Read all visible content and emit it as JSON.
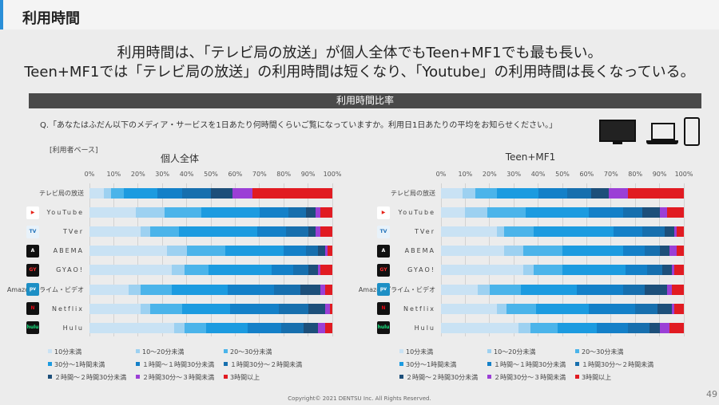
{
  "page": {
    "title": "利用時間",
    "headline_1": "利用時間は、「テレビ局の放送」が個人全体でもTeen+MF1でも最も長い。",
    "headline_2": "Teen+MF1では「テレビ局の放送」の利用時間は短くなり、「Youtube」の利用時間は長くなっている。",
    "section_header": "利用時間比率",
    "question": "Q.「あなたはふだん以下のメディア・サービスを1日あたり何時間くらいご覧になっていますか。利用日1日あたりの平均をお知らせください。」",
    "base_label": "[利用者ベース]",
    "copyright": "Copyright© 2021 DENTSU Inc. All Rights Reserved.",
    "page_number": "49"
  },
  "icons": [
    "tv-icon",
    "laptop-icon",
    "smartphone-icon"
  ],
  "chart_data": [
    {
      "type": "bar",
      "orientation": "horizontal",
      "stacked": true,
      "percent": true,
      "title": "個人全体",
      "xlim": [
        0,
        100
      ],
      "ticks": [
        "0%",
        "10%",
        "20%",
        "30%",
        "40%",
        "50%",
        "60%",
        "70%",
        "80%",
        "90%",
        "100%"
      ],
      "categories": [
        "テレビ局の放送",
        "YouTube",
        "TVer",
        "ABEMA",
        "GYAO!",
        "Amazonプライム・ビデオ",
        "Netflix",
        "Hulu"
      ],
      "series": [
        {
          "name": "10分未満",
          "color": "#c9e2f4",
          "values": [
            6,
            19,
            21,
            32,
            34,
            16,
            21,
            35
          ]
        },
        {
          "name": "10～20分未満",
          "color": "#9dd1f1",
          "values": [
            3,
            12,
            4,
            8,
            5,
            5,
            4,
            4
          ]
        },
        {
          "name": "20～30分未満",
          "color": "#4bb4ea",
          "values": [
            5,
            15,
            12,
            16,
            10,
            13,
            13,
            9
          ]
        },
        {
          "name": "30分～1時間未満",
          "color": "#1c9be0",
          "values": [
            14,
            24,
            32,
            24,
            26,
            23,
            20,
            17
          ]
        },
        {
          "name": "１時間～１時間30分未満",
          "color": "#1480c8",
          "values": [
            10,
            12,
            12,
            9,
            9,
            19,
            20,
            14
          ]
        },
        {
          "name": "１時間30分～２時間未満",
          "color": "#176fae",
          "values": [
            12,
            7,
            9,
            5,
            6,
            11,
            12,
            9
          ]
        },
        {
          "name": "２時間～２時間30分未満",
          "color": "#1d4f7a",
          "values": [
            9,
            4,
            3,
            3,
            4,
            8,
            7,
            6
          ]
        },
        {
          "name": "２時間30分～３時間未満",
          "color": "#9b3fd6",
          "values": [
            8,
            2,
            2,
            1,
            1,
            2,
            2,
            3
          ]
        },
        {
          "name": "3時間以上",
          "color": "#e11b22",
          "values": [
            33,
            5,
            5,
            2,
            5,
            3,
            1,
            3
          ]
        }
      ]
    },
    {
      "type": "bar",
      "orientation": "horizontal",
      "stacked": true,
      "percent": true,
      "title": "Teen+MF1",
      "xlim": [
        0,
        100
      ],
      "ticks": [
        "0%",
        "10%",
        "20%",
        "30%",
        "40%",
        "50%",
        "60%",
        "70%",
        "80%",
        "90%",
        "100%"
      ],
      "categories": [
        "テレビ局の放送",
        "YouTube",
        "TVer",
        "ABEMA",
        "GYAO!",
        "Amazonプライム・ビデオ",
        "Netflix",
        "Hulu"
      ],
      "series": [
        {
          "name": "10分未満",
          "color": "#c9e2f4",
          "values": [
            9,
            10,
            23,
            26,
            34,
            15,
            23,
            32
          ]
        },
        {
          "name": "10～20分未満",
          "color": "#9dd1f1",
          "values": [
            5,
            9,
            3,
            8,
            4,
            5,
            4,
            5
          ]
        },
        {
          "name": "20～30分未満",
          "color": "#4bb4ea",
          "values": [
            9,
            16,
            12,
            16,
            12,
            13,
            12,
            11
          ]
        },
        {
          "name": "30分～1時間未満",
          "color": "#1c9be0",
          "values": [
            17,
            26,
            33,
            25,
            26,
            23,
            22,
            16
          ]
        },
        {
          "name": "１時間～１時間30分未満",
          "color": "#1480c8",
          "values": [
            12,
            14,
            12,
            9,
            9,
            19,
            19,
            13
          ]
        },
        {
          "name": "１時間30分～２時間未満",
          "color": "#176fae",
          "values": [
            10,
            8,
            9,
            6,
            6,
            9,
            9,
            9
          ]
        },
        {
          "name": "２時間～２時間30分未満",
          "color": "#1d4f7a",
          "values": [
            7,
            7,
            4,
            4,
            4,
            9,
            6,
            4
          ]
        },
        {
          "name": "２時間30分～３時間未満",
          "color": "#9b3fd6",
          "values": [
            8,
            3,
            1,
            3,
            1,
            2,
            1,
            4
          ]
        },
        {
          "name": "3時間以上",
          "color": "#e11b22",
          "values": [
            23,
            7,
            3,
            3,
            4,
            5,
            4,
            6
          ]
        }
      ]
    }
  ]
}
